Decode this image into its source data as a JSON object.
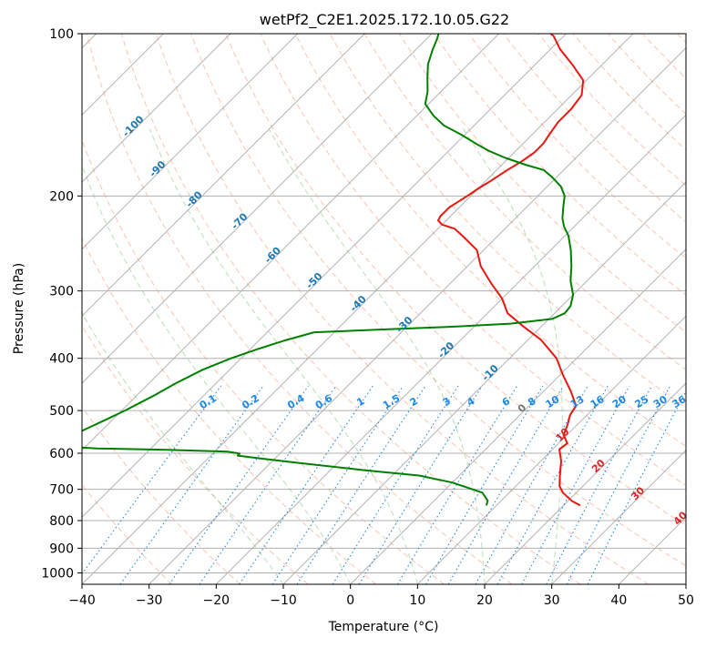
{
  "chart_data": {
    "type": "line",
    "title": "wetPf2_C2E1.2025.172.10.05.G22",
    "xlabel": "Temperature (°C)",
    "ylabel": "Pressure (hPa)",
    "xlim": [
      -40,
      50
    ],
    "ylim": [
      1050,
      100
    ],
    "y_scale": "log",
    "skew": true,
    "grid": true,
    "x_ticks": [
      -40,
      -30,
      -20,
      -10,
      0,
      10,
      20,
      30,
      40,
      50
    ],
    "x_tick_labels": [
      "−40",
      "−30",
      "−20",
      "−10",
      "0",
      "10",
      "20",
      "30",
      "40",
      "50"
    ],
    "y_ticks": [
      100,
      200,
      300,
      400,
      500,
      600,
      700,
      800,
      900,
      1000
    ],
    "y_tick_labels": [
      "100",
      "200",
      "300",
      "400",
      "500",
      "600",
      "700",
      "800",
      "900",
      "1000"
    ],
    "series": [
      {
        "color": "#e8170f",
        "points": [
          [
            22.5,
            750
          ],
          [
            20.5,
            735
          ],
          [
            18.0,
            710
          ],
          [
            16.5,
            690
          ],
          [
            15.0,
            660
          ],
          [
            13.0,
            620
          ],
          [
            11.0,
            590
          ],
          [
            11.3,
            575
          ],
          [
            9.5,
            555
          ],
          [
            8.5,
            530
          ],
          [
            7.5,
            510
          ],
          [
            7.0,
            490
          ],
          [
            4.0,
            460
          ],
          [
            0.5,
            430
          ],
          [
            -3.0,
            400
          ],
          [
            -8.0,
            370
          ],
          [
            -12.5,
            350
          ],
          [
            -17.0,
            330
          ],
          [
            -20.0,
            310
          ],
          [
            -24.0,
            290
          ],
          [
            -28.0,
            270
          ],
          [
            -31.0,
            252
          ],
          [
            -35.0,
            238
          ],
          [
            -37.5,
            230
          ],
          [
            -40.0,
            226
          ],
          [
            -41.2,
            222
          ],
          [
            -41.5,
            218
          ],
          [
            -41.5,
            214
          ],
          [
            -41.5,
            210
          ],
          [
            -41.0,
            205
          ],
          [
            -40.5,
            200
          ],
          [
            -40.0,
            194
          ],
          [
            -39.3,
            188
          ],
          [
            -38.5,
            180
          ],
          [
            -37.5,
            172
          ],
          [
            -37.0,
            166
          ],
          [
            -37.0,
            160
          ],
          [
            -37.5,
            153
          ],
          [
            -38.0,
            146
          ],
          [
            -38.0,
            138
          ],
          [
            -38.5,
            130
          ],
          [
            -40.5,
            122
          ],
          [
            -44.5,
            114
          ],
          [
            -48.5,
            107
          ],
          [
            -51.5,
            101
          ],
          [
            -52.3,
            100
          ]
        ]
      },
      {
        "color": "#008000",
        "points": [
          [
            8.5,
            750
          ],
          [
            8.0,
            735
          ],
          [
            6.0,
            710
          ],
          [
            0.0,
            680
          ],
          [
            -6.0,
            660
          ],
          [
            -15.0,
            645
          ],
          [
            -26.0,
            625
          ],
          [
            -32.0,
            614
          ],
          [
            -36.0,
            606
          ],
          [
            -36.0,
            601
          ],
          [
            -38.0,
            596
          ],
          [
            -48.0,
            591
          ],
          [
            -58.0,
            588
          ],
          [
            -62.0,
            584
          ],
          [
            -63.5,
            575
          ],
          [
            -63.8,
            560
          ],
          [
            -62.5,
            540
          ],
          [
            -61.0,
            520
          ],
          [
            -59.5,
            500
          ],
          [
            -57.5,
            470
          ],
          [
            -56.0,
            445
          ],
          [
            -54.0,
            420
          ],
          [
            -51.5,
            400
          ],
          [
            -49.0,
            385
          ],
          [
            -46.0,
            370
          ],
          [
            -43.0,
            358
          ],
          [
            -34.0,
            354
          ],
          [
            -24.0,
            350
          ],
          [
            -15.0,
            345
          ],
          [
            -9.5,
            338
          ],
          [
            -8.5,
            330
          ],
          [
            -8.7,
            320
          ],
          [
            -10.0,
            305
          ],
          [
            -12.5,
            287
          ],
          [
            -14.5,
            270
          ],
          [
            -17.0,
            252
          ],
          [
            -19.5,
            237
          ],
          [
            -21.5,
            228
          ],
          [
            -23.0,
            220
          ],
          [
            -24.5,
            210
          ],
          [
            -26.0,
            200
          ],
          [
            -28.0,
            192
          ],
          [
            -30.5,
            185
          ],
          [
            -33.0,
            179
          ],
          [
            -36.5,
            175
          ],
          [
            -40.5,
            170
          ],
          [
            -44.0,
            165
          ],
          [
            -47.0,
            160
          ],
          [
            -50.5,
            154
          ],
          [
            -54.5,
            148
          ],
          [
            -57.5,
            142
          ],
          [
            -60.5,
            135
          ],
          [
            -62.0,
            128
          ],
          [
            -64.0,
            121
          ],
          [
            -66.0,
            114
          ],
          [
            -67.5,
            107
          ],
          [
            -68.5,
            102
          ],
          [
            -69.0,
            100
          ]
        ]
      }
    ],
    "isotherm_labels": [
      "-100",
      "-90",
      "-80",
      "-70",
      "-60",
      "-50",
      "-40",
      "-30",
      "-20",
      "-10",
      "0",
      "10",
      "20",
      "30",
      "40"
    ],
    "mixing_ratio_labels": [
      "0.1",
      "0.2",
      "0.4",
      "0.6",
      "1",
      "1.5",
      "2",
      "3",
      "4",
      "6",
      "8",
      "10",
      "13",
      "16",
      "20",
      "25",
      "30",
      "36"
    ],
    "mixing_ratio_label_color": "#1e88e5",
    "isotherm_label_cold_color": "#1f77b4",
    "isotherm_label_warm_color": "#d62728",
    "isotherm_label_zero_color": "#777777"
  }
}
